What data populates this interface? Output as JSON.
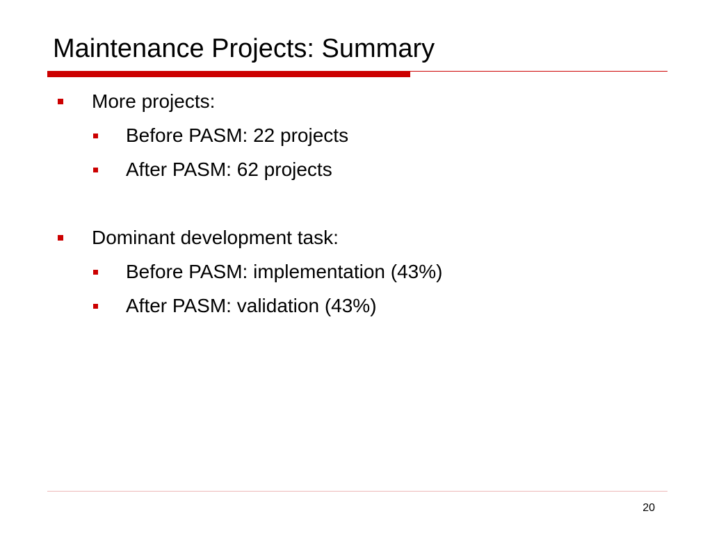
{
  "slide": {
    "title": "Maintenance Projects: Summary",
    "page_number": "20",
    "accent_color": "#cc0000",
    "bullets": [
      {
        "text": "More projects:",
        "children": [
          "Before PASM: 22 projects",
          "After PASM: 62 projects"
        ]
      },
      {
        "text": "Dominant development task:",
        "children": [
          "Before PASM: implementation (43%)",
          "After PASM: validation (43%)"
        ]
      }
    ]
  }
}
